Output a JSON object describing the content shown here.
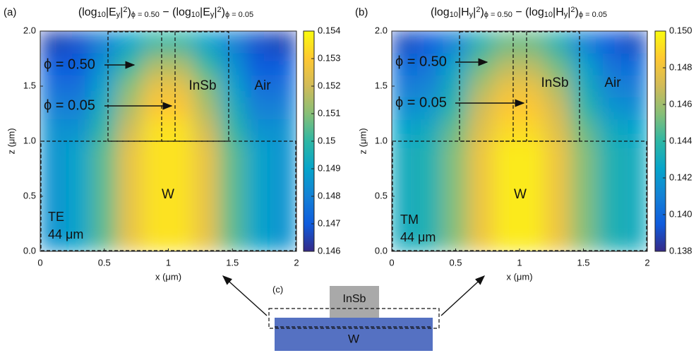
{
  "chart_data": [
    {
      "type": "heatmap",
      "panel_label": "(a)",
      "title_parts": [
        {
          "text": "(log"
        },
        {
          "text": "10",
          "shift": "sub"
        },
        {
          "text": "|E"
        },
        {
          "text": "y",
          "shift": "sub"
        },
        {
          "text": "|"
        },
        {
          "text": "2",
          "shift": "sup"
        },
        {
          "text": ")"
        },
        {
          "text": "ϕ = 0.50",
          "shift": "sub"
        },
        {
          "text": " − (log"
        },
        {
          "text": "10",
          "shift": "sub"
        },
        {
          "text": "|E"
        },
        {
          "text": "y",
          "shift": "sub"
        },
        {
          "text": "|"
        },
        {
          "text": "2",
          "shift": "sup"
        },
        {
          "text": ")"
        },
        {
          "text": "ϕ = 0.05",
          "shift": "sub"
        }
      ],
      "xlabel": "x (μm)",
      "ylabel": "z (μm)",
      "xlim": [
        0,
        2
      ],
      "ylim": [
        0,
        2
      ],
      "xticks": [
        0,
        0.5,
        1,
        1.5,
        2
      ],
      "yticks": [
        {
          "value": 0,
          "label": "0.0"
        },
        {
          "value": 0.5,
          "label": "0.5"
        },
        {
          "value": 1,
          "label": "1.0"
        },
        {
          "value": 1.5,
          "label": "1.5"
        },
        {
          "value": 2,
          "label": "2.0"
        }
      ],
      "clim": [
        0.146,
        0.154
      ],
      "cticks": [
        0.146,
        0.147,
        0.148,
        0.149,
        0.15,
        0.151,
        0.152,
        0.153,
        0.154
      ],
      "colorscale": [
        "#352a87",
        "#0f5cdd",
        "#1481d6",
        "#06a4ca",
        "#2eb7a4",
        "#87bf77",
        "#d1bb59",
        "#fec832",
        "#f9fb0e"
      ],
      "x": [
        0.1,
        0.3,
        0.5,
        0.7,
        0.9,
        1.1,
        1.3,
        1.5,
        1.7,
        1.9
      ],
      "z": [
        0.1,
        0.3,
        0.5,
        0.7,
        0.9,
        1.1,
        1.3,
        1.5,
        1.7,
        1.9
      ],
      "values": [
        [
          0.1485,
          0.149,
          0.1505,
          0.1525,
          0.1535,
          0.1535,
          0.1525,
          0.1505,
          0.149,
          0.1485
        ],
        [
          0.1485,
          0.149,
          0.1505,
          0.1525,
          0.1535,
          0.1535,
          0.1525,
          0.1505,
          0.149,
          0.1485
        ],
        [
          0.1485,
          0.149,
          0.1505,
          0.1525,
          0.1535,
          0.1535,
          0.1525,
          0.1505,
          0.149,
          0.1485
        ],
        [
          0.1485,
          0.149,
          0.1505,
          0.1525,
          0.1535,
          0.1535,
          0.1525,
          0.1505,
          0.149,
          0.1485
        ],
        [
          0.1485,
          0.149,
          0.1505,
          0.1525,
          0.1535,
          0.1535,
          0.1525,
          0.1505,
          0.149,
          0.1485
        ],
        [
          0.1485,
          0.1485,
          0.15,
          0.152,
          0.1535,
          0.1535,
          0.152,
          0.15,
          0.1485,
          0.1485
        ],
        [
          0.148,
          0.148,
          0.1495,
          0.1515,
          0.153,
          0.153,
          0.1515,
          0.1495,
          0.148,
          0.148
        ],
        [
          0.1475,
          0.1475,
          0.149,
          0.151,
          0.1525,
          0.1525,
          0.151,
          0.149,
          0.1475,
          0.1475
        ],
        [
          0.147,
          0.147,
          0.1485,
          0.15,
          0.1515,
          0.1515,
          0.15,
          0.1485,
          0.147,
          0.147
        ],
        [
          0.1465,
          0.1468,
          0.148,
          0.149,
          0.15,
          0.15,
          0.149,
          0.148,
          0.1468,
          0.1465
        ]
      ],
      "annotations": {
        "phi_high": "ϕ = 0.50",
        "phi_low": "ϕ = 0.05",
        "core": "InSb",
        "air": "Air",
        "substrate": "W",
        "polarization": "TE",
        "wavelength": "44 μm"
      }
    },
    {
      "type": "heatmap",
      "panel_label": "(b)",
      "title_parts": [
        {
          "text": "(log"
        },
        {
          "text": "10",
          "shift": "sub"
        },
        {
          "text": "|H"
        },
        {
          "text": "y",
          "shift": "sub"
        },
        {
          "text": "|"
        },
        {
          "text": "2",
          "shift": "sup"
        },
        {
          "text": ")"
        },
        {
          "text": "ϕ = 0.50",
          "shift": "sub"
        },
        {
          "text": " − (log"
        },
        {
          "text": "10",
          "shift": "sub"
        },
        {
          "text": "|H"
        },
        {
          "text": "y",
          "shift": "sub"
        },
        {
          "text": "|"
        },
        {
          "text": "2",
          "shift": "sup"
        },
        {
          "text": ")"
        },
        {
          "text": "ϕ = 0.05",
          "shift": "sub"
        }
      ],
      "xlabel": "x (μm)",
      "ylabel": "z (μm)",
      "xlim": [
        0,
        2
      ],
      "ylim": [
        0,
        2
      ],
      "xticks": [
        0,
        0.5,
        1,
        1.5,
        2
      ],
      "yticks": [
        {
          "value": 0,
          "label": "0.0"
        },
        {
          "value": 0.5,
          "label": "0.5"
        },
        {
          "value": 1,
          "label": "1.0"
        },
        {
          "value": 1.5,
          "label": "1.5"
        },
        {
          "value": 2,
          "label": "2.0"
        }
      ],
      "clim": [
        0.138,
        0.15
      ],
      "cticks": [
        0.138,
        {
          "value": 0.14,
          "label": "0.140"
        },
        0.142,
        0.144,
        0.146,
        0.148,
        {
          "value": 0.15,
          "label": "0.150"
        }
      ],
      "colorscale": [
        "#352a87",
        "#0f5cdd",
        "#1481d6",
        "#06a4ca",
        "#2eb7a4",
        "#87bf77",
        "#d1bb59",
        "#fec832",
        "#f9fb0e"
      ],
      "x": [
        0.1,
        0.3,
        0.5,
        0.7,
        0.9,
        1.1,
        1.3,
        1.5,
        1.7,
        1.9
      ],
      "z": [
        0.1,
        0.3,
        0.5,
        0.7,
        0.9,
        1.1,
        1.3,
        1.5,
        1.7,
        1.9
      ],
      "values": [
        [
          0.143,
          0.1435,
          0.1455,
          0.148,
          0.1495,
          0.1495,
          0.148,
          0.1455,
          0.1435,
          0.143
        ],
        [
          0.143,
          0.1435,
          0.1455,
          0.148,
          0.1495,
          0.1495,
          0.148,
          0.1455,
          0.1435,
          0.143
        ],
        [
          0.143,
          0.1435,
          0.1455,
          0.148,
          0.1495,
          0.1495,
          0.148,
          0.1455,
          0.1435,
          0.143
        ],
        [
          0.143,
          0.1435,
          0.1455,
          0.148,
          0.1495,
          0.1495,
          0.148,
          0.1455,
          0.1435,
          0.143
        ],
        [
          0.143,
          0.1435,
          0.1455,
          0.148,
          0.1495,
          0.1495,
          0.148,
          0.1455,
          0.1435,
          0.143
        ],
        [
          0.1425,
          0.143,
          0.145,
          0.1475,
          0.149,
          0.149,
          0.1475,
          0.145,
          0.143,
          0.1425
        ],
        [
          0.1415,
          0.142,
          0.144,
          0.147,
          0.1485,
          0.1485,
          0.147,
          0.144,
          0.142,
          0.1415
        ],
        [
          0.1408,
          0.1412,
          0.1432,
          0.1462,
          0.1478,
          0.1478,
          0.1462,
          0.1432,
          0.1412,
          0.1408
        ],
        [
          0.14,
          0.1405,
          0.1425,
          0.145,
          0.1465,
          0.1465,
          0.145,
          0.1425,
          0.1405,
          0.14
        ],
        [
          0.139,
          0.1395,
          0.141,
          0.1435,
          0.145,
          0.145,
          0.1435,
          0.141,
          0.1395,
          0.139
        ]
      ],
      "annotations": {
        "phi_high": "ϕ = 0.50",
        "phi_low": "ϕ = 0.05",
        "core": "InSb",
        "air": "Air",
        "substrate": "W",
        "polarization": "TM",
        "wavelength": "44 μm"
      }
    }
  ],
  "diagram": {
    "label": "(c)",
    "core": "InSb",
    "substrate": "W"
  }
}
